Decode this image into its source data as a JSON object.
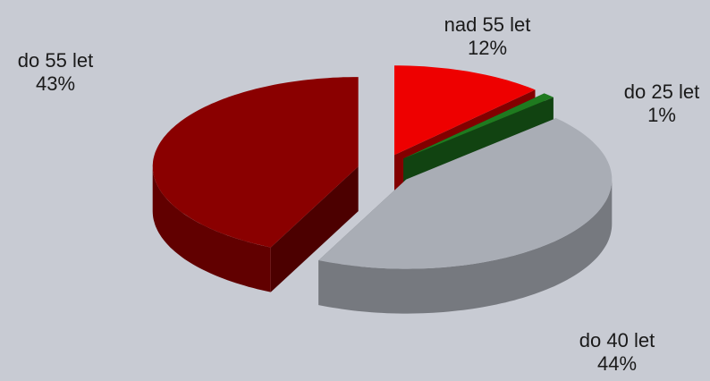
{
  "chart_data": {
    "type": "pie",
    "categories": [
      "nad 55 let",
      "do 25 let",
      "do 40 let",
      "do 55 let"
    ],
    "values": [
      12,
      1,
      44,
      43
    ],
    "value_labels": [
      "12%",
      "1%",
      "44%",
      "43%"
    ],
    "colors": [
      "#ee0000",
      "#1f7a1f",
      "#a9adb5",
      "#8a0000"
    ]
  }
}
